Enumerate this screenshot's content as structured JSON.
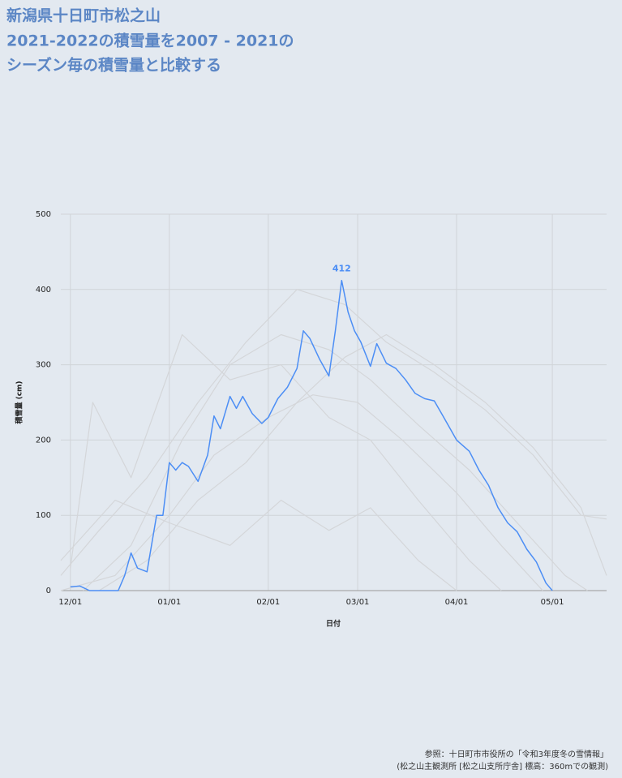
{
  "chart_data": {
    "type": "line",
    "title": [
      "新潟県十日町市松之山",
      "2021-2022の積雪量を2007 - 2021の",
      "シーズン毎の積雪量と比較する"
    ],
    "x_label": "日付",
    "y_label": "積雪量 (cm)",
    "source": [
      "参照：十日町市市役所の「令和3年度冬の雪情報」",
      "(松之山主観測所 [松之山支所庁舎] 標高：360mでの観測)"
    ],
    "xlim": [
      "11/28",
      "05/18"
    ],
    "xticks": [
      "12/01",
      "01/01",
      "02/01",
      "03/01",
      "04/01",
      "05/01"
    ],
    "ylim": [
      0,
      500
    ],
    "yticks": [
      0,
      100,
      200,
      300,
      400,
      500
    ],
    "grid": true,
    "series": [
      {
        "name": "2021-2022",
        "color": "#4c8ef5",
        "x": [
          "12/01",
          "12/04",
          "12/07",
          "12/10",
          "12/13",
          "12/16",
          "12/18",
          "12/20",
          "12/22",
          "12/25",
          "12/28",
          "12/30",
          "01/01",
          "01/03",
          "01/05",
          "01/07",
          "01/10",
          "01/13",
          "01/15",
          "01/17",
          "01/20",
          "01/22",
          "01/24",
          "01/27",
          "01/30",
          "02/01",
          "02/04",
          "02/07",
          "02/10",
          "02/12",
          "02/14",
          "02/17",
          "02/20",
          "02/22",
          "02/24",
          "02/26",
          "02/28",
          "03/02",
          "03/05",
          "03/07",
          "03/10",
          "03/13",
          "03/16",
          "03/19",
          "03/22",
          "03/25",
          "03/28",
          "04/01",
          "04/05",
          "04/08",
          "04/11",
          "04/14",
          "04/17",
          "04/20",
          "04/23",
          "04/26",
          "04/29",
          "05/01"
        ],
        "values": [
          5,
          6,
          0,
          0,
          0,
          0,
          20,
          50,
          30,
          25,
          100,
          100,
          170,
          160,
          170,
          165,
          145,
          180,
          232,
          215,
          258,
          242,
          258,
          235,
          222,
          230,
          255,
          270,
          295,
          345,
          335,
          308,
          285,
          345,
          412,
          370,
          345,
          330,
          298,
          328,
          302,
          295,
          280,
          262,
          255,
          252,
          230,
          200,
          185,
          160,
          140,
          110,
          90,
          78,
          55,
          38,
          10,
          0
        ]
      },
      {
        "color": "#d4d6d9",
        "x": [
          "11/28",
          "12/10",
          "12/25",
          "01/10",
          "01/25",
          "02/10",
          "02/25",
          "03/10",
          "03/25",
          "04/10",
          "04/25",
          "05/10",
          "05/18"
        ],
        "values": [
          20,
          80,
          150,
          250,
          330,
          400,
          380,
          330,
          290,
          240,
          180,
          100,
          95
        ]
      },
      {
        "color": "#d4d6d9",
        "x": [
          "12/05",
          "12/20",
          "01/05",
          "01/20",
          "02/05",
          "02/20",
          "03/05",
          "03/20",
          "04/05",
          "04/20",
          "05/05",
          "05/12"
        ],
        "values": [
          0,
          60,
          200,
          300,
          340,
          320,
          280,
          220,
          160,
          90,
          20,
          0
        ]
      },
      {
        "color": "#d4d6d9",
        "x": [
          "11/28",
          "12/15",
          "01/01",
          "01/15",
          "02/01",
          "02/15",
          "03/01",
          "03/15",
          "04/01",
          "04/15",
          "04/28"
        ],
        "values": [
          0,
          20,
          100,
          180,
          230,
          260,
          250,
          200,
          130,
          60,
          0
        ]
      },
      {
        "color": "#d4d6d9",
        "x": [
          "12/01",
          "12/08",
          "12/20",
          "01/05",
          "01/20",
          "02/05",
          "02/20",
          "03/05",
          "03/20",
          "04/05",
          "04/15"
        ],
        "values": [
          30,
          250,
          150,
          340,
          280,
          300,
          230,
          200,
          120,
          40,
          0
        ]
      },
      {
        "color": "#d4d6d9",
        "x": [
          "12/10",
          "12/25",
          "01/10",
          "01/25",
          "02/10",
          "02/25",
          "03/10",
          "03/25",
          "04/10",
          "04/25",
          "05/10",
          "05/18"
        ],
        "values": [
          0,
          40,
          120,
          170,
          250,
          310,
          340,
          300,
          250,
          190,
          110,
          20
        ]
      },
      {
        "color": "#d4d6d9",
        "x": [
          "11/28",
          "12/15",
          "01/01",
          "01/20",
          "02/05",
          "02/20",
          "03/05",
          "03/20",
          "04/01"
        ],
        "values": [
          40,
          120,
          90,
          60,
          120,
          80,
          110,
          40,
          0
        ]
      }
    ]
  }
}
